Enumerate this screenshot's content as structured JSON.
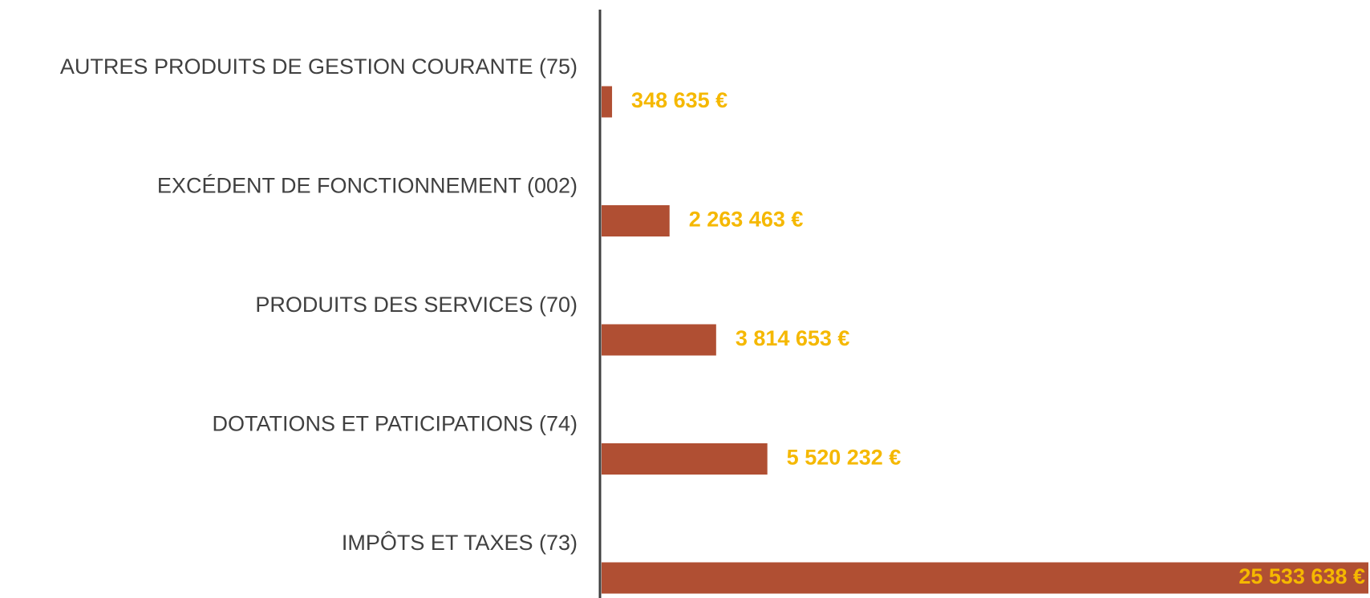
{
  "chart_data": {
    "type": "hbar",
    "categories": [
      "AUTRES PRODUITS DE GESTION COURANTE (75)",
      "EXCÉDENT DE FONCTIONNEMENT (002)",
      "PRODUITS DES SERVICES (70)",
      "DOTATIONS ET PATICIPATIONS (74)",
      "IMPÔTS ET TAXES (73)"
    ],
    "values": [
      348635,
      2263463,
      3814653,
      5520232,
      25533638
    ],
    "value_labels": [
      "348 635 €",
      "2 263 463 €",
      "3 814 653 €",
      "5 520 232 €",
      "25 533 638 €"
    ],
    "color": "#b04f33",
    "label_color": "#f5b800"
  }
}
